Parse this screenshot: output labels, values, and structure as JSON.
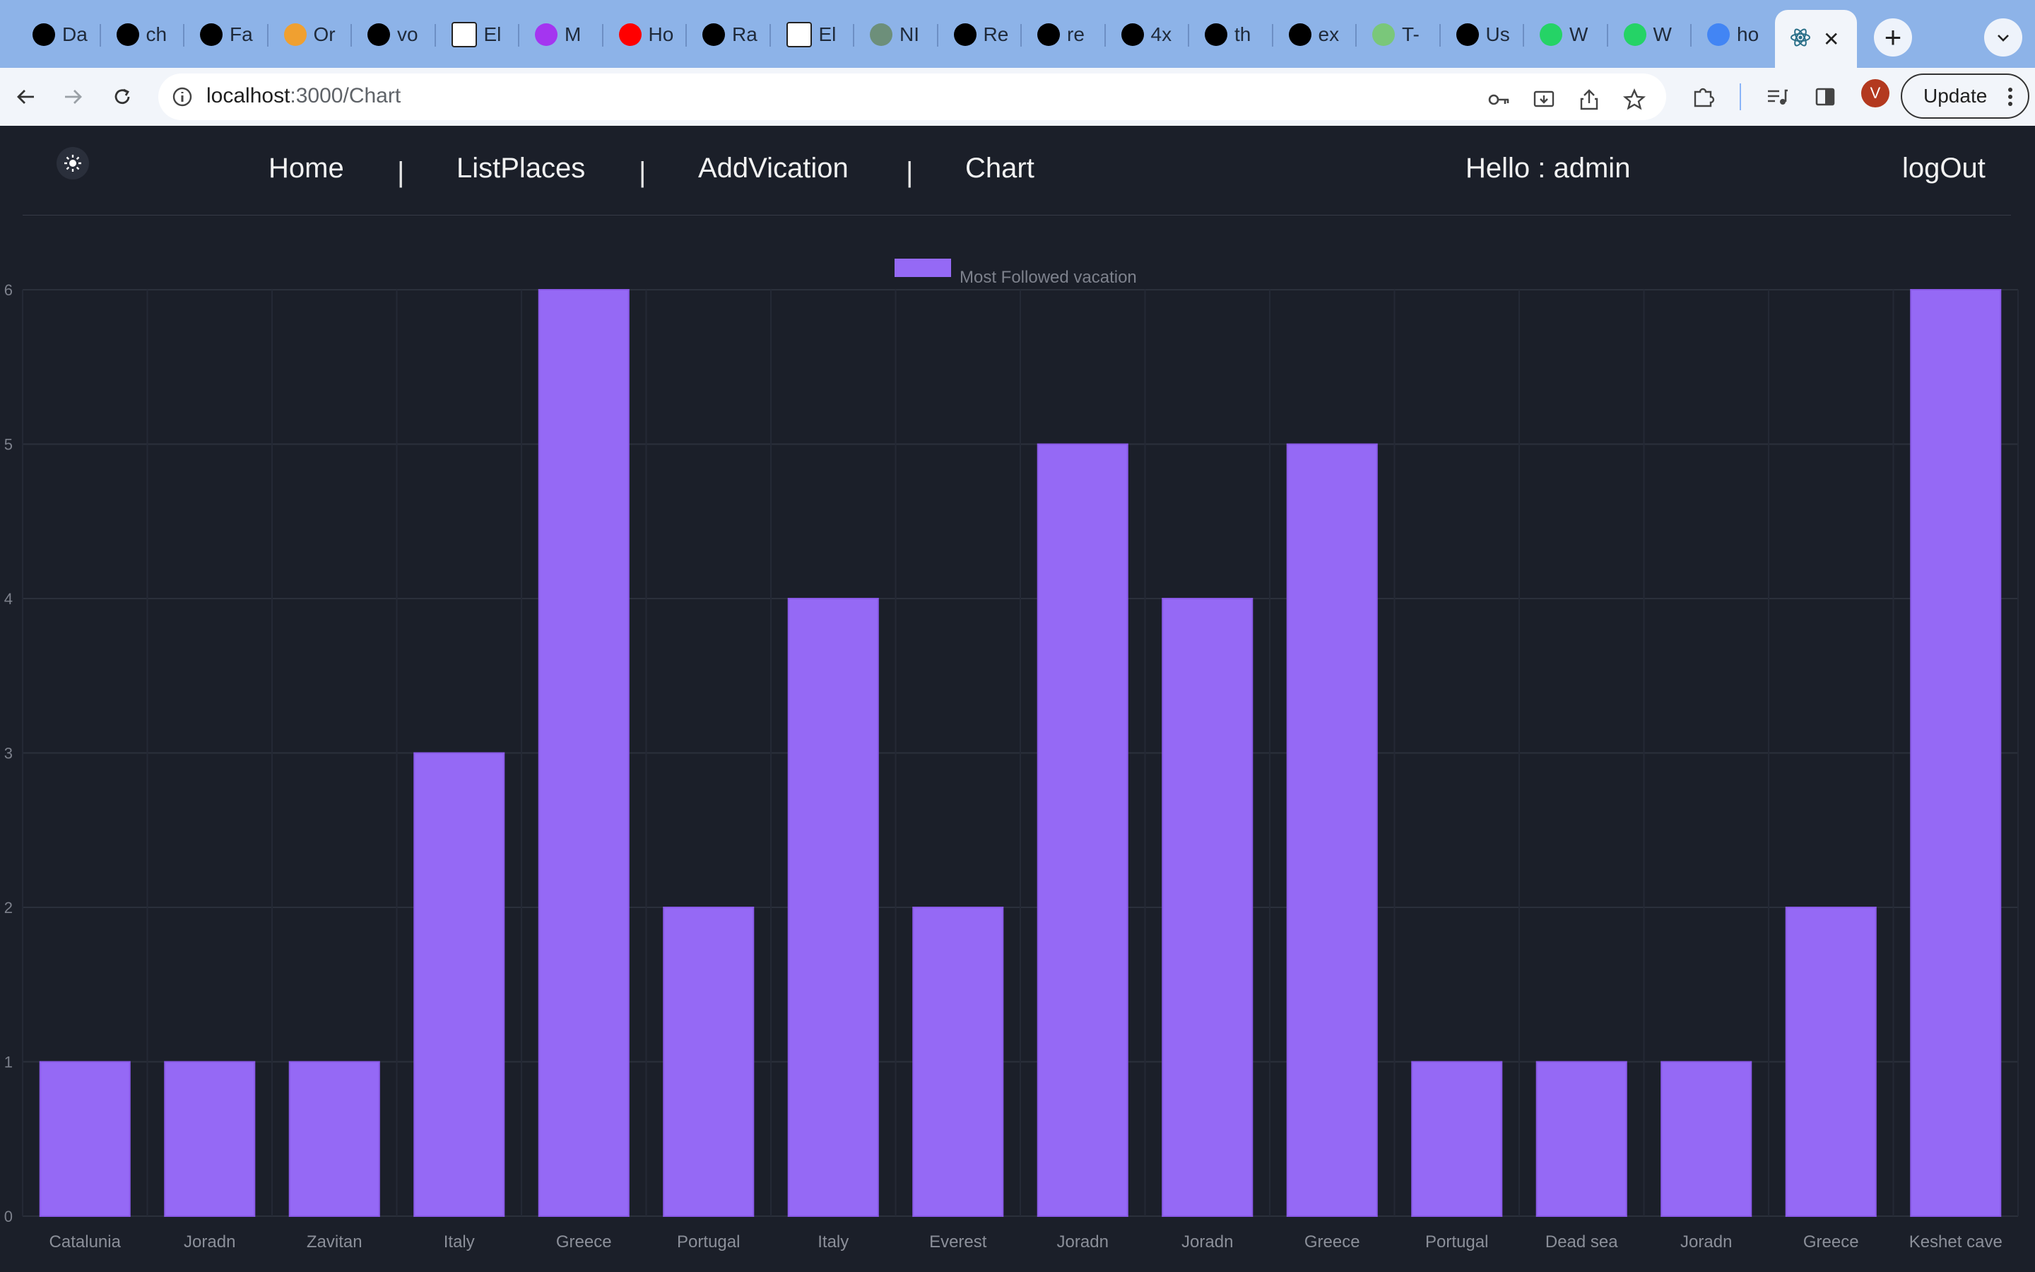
{
  "browser": {
    "tabs": [
      {
        "label": "Da",
        "icon": "triangle-logo-icon",
        "color": "#000000"
      },
      {
        "label": "ch",
        "icon": "github-icon",
        "color": "#000000"
      },
      {
        "label": "Fa",
        "icon": "bolt-icon",
        "color": "#000000"
      },
      {
        "label": "Or",
        "icon": "dots-logo-icon",
        "color": "#f0a030"
      },
      {
        "label": "vo",
        "icon": "github-icon",
        "color": "#000000"
      },
      {
        "label": "El",
        "icon": "elementor-icon",
        "color": "#ffffff"
      },
      {
        "label": "M",
        "icon": "udemy-icon",
        "color": "#a435f0"
      },
      {
        "label": "Ho",
        "icon": "youtube-icon",
        "color": "#ff0000"
      },
      {
        "label": "Ra",
        "icon": "globe-icon",
        "color": "#000000"
      },
      {
        "label": "El",
        "icon": "elementor-icon",
        "color": "#ffffff"
      },
      {
        "label": "NI",
        "icon": "openai-icon",
        "color": "#6d8f7a"
      },
      {
        "label": "Re",
        "icon": "github-icon",
        "color": "#000000"
      },
      {
        "label": "re",
        "icon": "github-icon",
        "color": "#000000"
      },
      {
        "label": "4x",
        "icon": "ship-icon",
        "color": "#000000"
      },
      {
        "label": "th",
        "icon": "github-icon",
        "color": "#000000"
      },
      {
        "label": "ex",
        "icon": "github-icon",
        "color": "#000000"
      },
      {
        "label": "T-",
        "icon": "x-logo-icon",
        "color": "#7ac77a"
      },
      {
        "label": "Us",
        "icon": "openai-icon",
        "color": "#000000"
      },
      {
        "label": "W",
        "icon": "whatsapp-icon",
        "color": "#25d366"
      },
      {
        "label": "W",
        "icon": "whatsapp-business-icon",
        "color": "#25d366"
      },
      {
        "label": "ho",
        "icon": "google-icon",
        "color": "#4285f4"
      }
    ],
    "active_tab": {
      "icon": "react-icon",
      "close": "✕"
    },
    "new_tab": "+",
    "url_host": "localhost",
    "url_path": ":3000/Chart",
    "update_label": "Update",
    "profile_initial": "V"
  },
  "nav": {
    "home": "Home",
    "sep": "|",
    "list_places": "ListPlaces",
    "add_vication": "AddVication",
    "chart": "Chart",
    "greeting": "Hello : admin",
    "logout": "logOut"
  },
  "chart_data": {
    "type": "bar",
    "title": "",
    "xlabel": "",
    "ylabel": "",
    "legend": "top",
    "grid": true,
    "ylim": [
      0,
      6
    ],
    "yticks": [
      0,
      1,
      2,
      3,
      4,
      5,
      6
    ],
    "categories": [
      "Catalunia",
      "Joradn",
      "Zavitan",
      "Italy",
      "Greece",
      "Portugal",
      "Italy",
      "Everest",
      "Joradn",
      "Joradn",
      "Greece",
      "Portugal",
      "Dead sea",
      "Joradn",
      "Greece",
      "Keshet cave"
    ],
    "series": [
      {
        "name": "Most Followed vacation",
        "color": "#9569f5",
        "values": [
          1,
          1,
          1,
          3,
          6,
          2,
          4,
          2,
          5,
          4,
          5,
          1,
          1,
          1,
          2,
          6
        ]
      }
    ]
  }
}
